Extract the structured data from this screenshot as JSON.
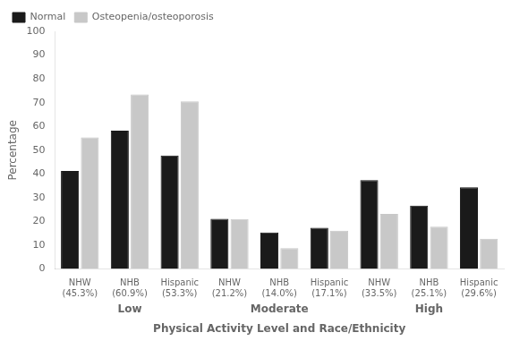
{
  "chart_data": {
    "type": "bar",
    "xlabel": "Physical Activity Level and Race/Ethnicity",
    "ylabel": "Percentage",
    "categories": [
      "NHW\n(45.3%)",
      "NHB\n(60.9%)",
      "Hispanic\n(53.3%)",
      "NHW\n(21.2%)",
      "NHB\n(14.0%)",
      "Hispanic\n(17.1%)",
      "NHW\n(33.5%)",
      "NHB\n(25.1%)",
      "Hispanic\n(29.6%)"
    ],
    "groups": [
      "Low",
      "Moderate",
      "High"
    ],
    "series": [
      {
        "name": "Normal",
        "color": "#1a1a1a",
        "values": [
          41.3,
          58.2,
          47.8,
          21.1,
          15.4,
          17.4,
          37.4,
          26.7,
          34.4
        ]
      },
      {
        "name": "Osteopenia/osteoporosis",
        "color": "#c8c8c8",
        "values": [
          55.4,
          73.5,
          70.5,
          21.0,
          8.8,
          16.1,
          23.2,
          17.8,
          12.7
        ]
      }
    ],
    "ylim": [
      0,
      100
    ],
    "yticks": [
      0,
      10,
      20,
      30,
      40,
      50,
      60,
      70,
      80,
      90,
      100
    ],
    "legend": "upper left",
    "grid": false
  }
}
